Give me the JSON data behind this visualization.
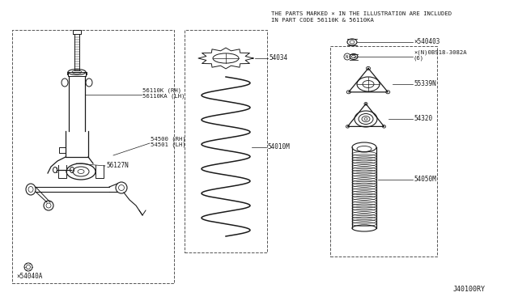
{
  "background_color": "#ffffff",
  "diagram_code": "J40100RY",
  "header_line1": "THE PARTS MARKED × IN THE ILLUSTRATION ARE INCLUDED",
  "header_line2": "IN PART CODE 56110K & 56110KA",
  "lc": "#1a1a1a",
  "dc": "#555555",
  "parts": {
    "part_540403": "×540403",
    "part_0B918": "×(N)0B918-3082A\n(6)",
    "part_55339N": "55339N",
    "part_54320": "54320",
    "part_54050M": "54050M",
    "part_56110K": "56110K (RH)\n56110KA (LH)",
    "part_54500": "54500 (RH)\n54501 (LH)",
    "part_56127N": "56127N",
    "part_54040A": "×54040A",
    "part_54034": "54034",
    "part_54010M": "54010M"
  }
}
